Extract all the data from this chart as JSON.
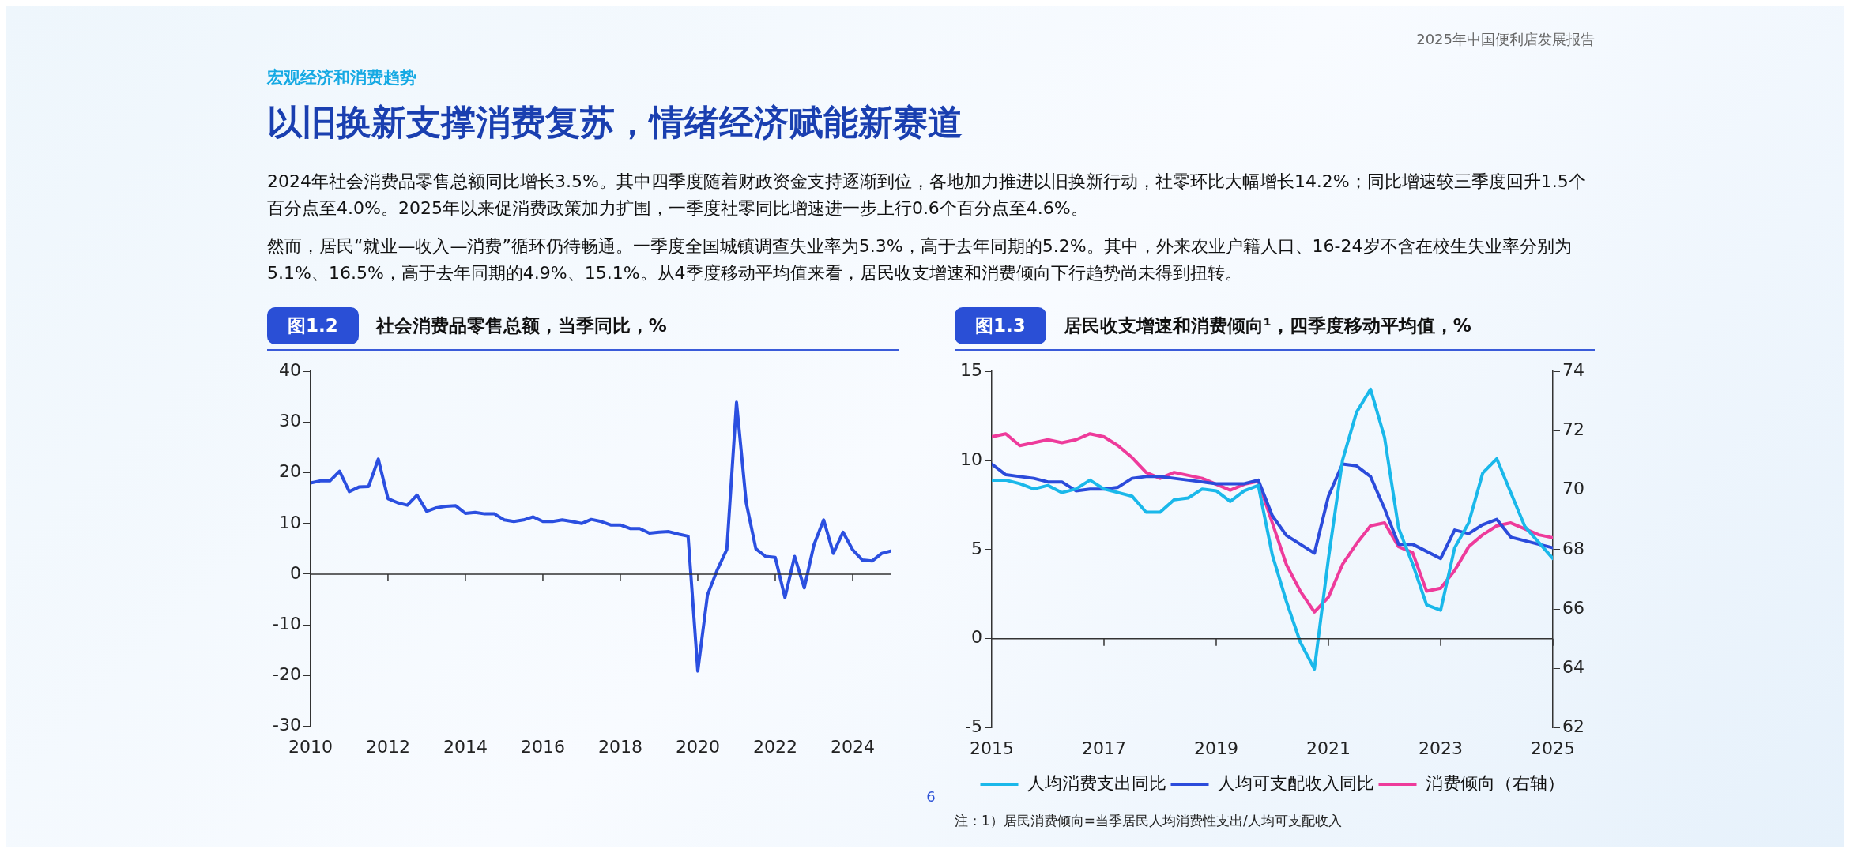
{
  "chart_data": [
    {
      "type": "other",
      "title": "以旧换新支撑消费复苏，情绪经济赋能新赛道",
      "subtitle": "宏观经济和消费趋势",
      "annotations": [
        "2025年中国便利店发展报告",
        "2024年社会消费品零售总额同比增长3.5%。其中四季度随着财政资金支持逐渐到位，各地加力推进以旧换新行动，社零环比大幅增长14.2%；同比增速较三季度回升1.5个百分点至4.0%。2025年以来促消费政策加力扩围，一季度社零同比增速进一步上行0.6个百分点至4.6%。",
        "然而，居民“就业—收入—消费”循环仍待畅通。一季度全国城镇调查失业率为5.3%，高于去年同期的5.2%。其中，外来农业户籍人口、16-24岁不含在校生失业率分别为5.1%、16.5%，高于去年同期的4.9%、15.1%。从4季度移动平均值来看，居民收支增速和消费倾向下行趋势尚未得到扭转。",
        "6"
      ]
    },
    {
      "type": "line",
      "title": "社会消费品零售总额，当季同比，%",
      "annotations": [
        "图1.2"
      ],
      "color": "#2b4fe0",
      "x": [
        "2010-01",
        "2010-04",
        "2010-07",
        "2010-10",
        "2011-01",
        "2011-04",
        "2011-07",
        "2011-10",
        "2012-01",
        "2012-04",
        "2012-07",
        "2012-10",
        "2013-01",
        "2013-04",
        "2013-07",
        "2013-10",
        "2014-01",
        "2014-04",
        "2014-07",
        "2014-10",
        "2015-01",
        "2015-04",
        "2015-07",
        "2015-10",
        "2016-01",
        "2016-04",
        "2016-07",
        "2016-10",
        "2017-01",
        "2017-04",
        "2017-07",
        "2017-10",
        "2018-01",
        "2018-04",
        "2018-07",
        "2018-10",
        "2019-01",
        "2019-04",
        "2019-07",
        "2019-10",
        "2020-01",
        "2020-04",
        "2020-07",
        "2020-10",
        "2021-01",
        "2021-04",
        "2021-07",
        "2021-10",
        "2022-01",
        "2022-04",
        "2022-07",
        "2022-10",
        "2023-01",
        "2023-04",
        "2023-07",
        "2023-10",
        "2024-01",
        "2024-04",
        "2024-07",
        "2024-10",
        "2025-01"
      ],
      "values": [
        18.0,
        18.4,
        18.4,
        20.3,
        16.3,
        17.2,
        17.3,
        22.7,
        14.9,
        14.1,
        13.6,
        15.6,
        12.4,
        13.1,
        13.4,
        13.5,
        12.0,
        12.2,
        11.9,
        11.9,
        10.7,
        10.4,
        10.7,
        11.3,
        10.4,
        10.4,
        10.7,
        10.4,
        10.0,
        10.8,
        10.4,
        9.7,
        9.7,
        9.0,
        9.0,
        8.1,
        8.3,
        8.4,
        7.9,
        7.5,
        -19.1,
        -4.1,
        0.8,
        4.9,
        33.9,
        14.1,
        5.0,
        3.5,
        3.3,
        -4.6,
        3.5,
        -2.7,
        5.8,
        10.7,
        4.1,
        8.3,
        4.8,
        2.8,
        2.6,
        4.1,
        4.6
      ],
      "xlim": [
        "2010-01",
        "2025-01"
      ],
      "xticks": [
        "2010",
        "2012",
        "2014",
        "2016",
        "2018",
        "2020",
        "2022",
        "2024"
      ],
      "ylim": [
        -30,
        40
      ],
      "yticks": [
        -30,
        -20,
        -10,
        0,
        10,
        20,
        30,
        40
      ]
    },
    {
      "type": "line",
      "title": "居民收支增速和消费倾向¹，四季度移动平均值，%",
      "annotations": [
        "图1.3",
        "注：1）居民消费倾向=当季居民人均消费性支出/人均可支配收入"
      ],
      "x": [
        "2015-01",
        "2015-04",
        "2015-07",
        "2015-10",
        "2016-01",
        "2016-04",
        "2016-07",
        "2016-10",
        "2017-01",
        "2017-04",
        "2017-07",
        "2017-10",
        "2018-01",
        "2018-04",
        "2018-07",
        "2018-10",
        "2019-01",
        "2019-04",
        "2019-07",
        "2019-10",
        "2020-01",
        "2020-04",
        "2020-07",
        "2020-10",
        "2021-01",
        "2021-04",
        "2021-07",
        "2021-10",
        "2022-01",
        "2022-04",
        "2022-07",
        "2022-10",
        "2023-01",
        "2023-04",
        "2023-07",
        "2023-10",
        "2024-01",
        "2024-04",
        "2024-07",
        "2024-10",
        "2025-01"
      ],
      "series": [
        {
          "name": "人均消费支出同比",
          "color": "#1ab8ea",
          "values": [
            8.9,
            8.9,
            8.7,
            8.4,
            8.6,
            8.2,
            8.4,
            8.9,
            8.4,
            8.2,
            8.0,
            7.1,
            7.1,
            7.8,
            7.9,
            8.4,
            8.3,
            7.7,
            8.3,
            8.6,
            4.7,
            2.1,
            -0.2,
            -1.7,
            4.5,
            10.0,
            12.7,
            14.0,
            11.3,
            6.2,
            4.2,
            1.9,
            1.6,
            5.1,
            6.5,
            9.3,
            10.1,
            8.2,
            6.3,
            5.4,
            4.5
          ]
        },
        {
          "name": "人均可支配收入同比",
          "color": "#2b4bdb",
          "values": [
            9.8,
            9.2,
            9.1,
            9.0,
            8.8,
            8.8,
            8.3,
            8.4,
            8.4,
            8.5,
            9.0,
            9.1,
            9.1,
            9.0,
            8.9,
            8.8,
            8.7,
            8.7,
            8.7,
            8.9,
            6.9,
            5.8,
            5.3,
            4.8,
            8.0,
            9.8,
            9.7,
            9.1,
            7.3,
            5.3,
            5.3,
            4.9,
            4.5,
            6.1,
            5.9,
            6.4,
            6.7,
            5.7,
            5.5,
            5.3,
            5.1
          ]
        },
        {
          "name": "消费倾向（右轴）",
          "color": "#ee3b9b",
          "axis": "y2",
          "values": [
            71.8,
            71.9,
            71.5,
            71.6,
            71.7,
            71.6,
            71.7,
            71.9,
            71.8,
            71.5,
            71.1,
            70.6,
            70.4,
            70.6,
            70.5,
            70.4,
            70.2,
            70.0,
            70.2,
            70.3,
            68.9,
            67.5,
            66.6,
            65.9,
            66.4,
            67.5,
            68.2,
            68.8,
            68.9,
            68.1,
            67.9,
            66.6,
            66.7,
            67.3,
            68.1,
            68.5,
            68.8,
            68.9,
            68.7,
            68.5,
            68.4
          ]
        }
      ],
      "xlim": [
        "2015-01",
        "2025-01"
      ],
      "xticks": [
        "2015",
        "2017",
        "2019",
        "2021",
        "2023",
        "2025"
      ],
      "ylim": [
        -5,
        15
      ],
      "yticks": [
        -5,
        0,
        5,
        10,
        15
      ],
      "y2lim": [
        62,
        74
      ],
      "y2ticks": [
        62,
        64,
        66,
        68,
        70,
        72,
        74
      ],
      "legend": "bottom"
    }
  ]
}
